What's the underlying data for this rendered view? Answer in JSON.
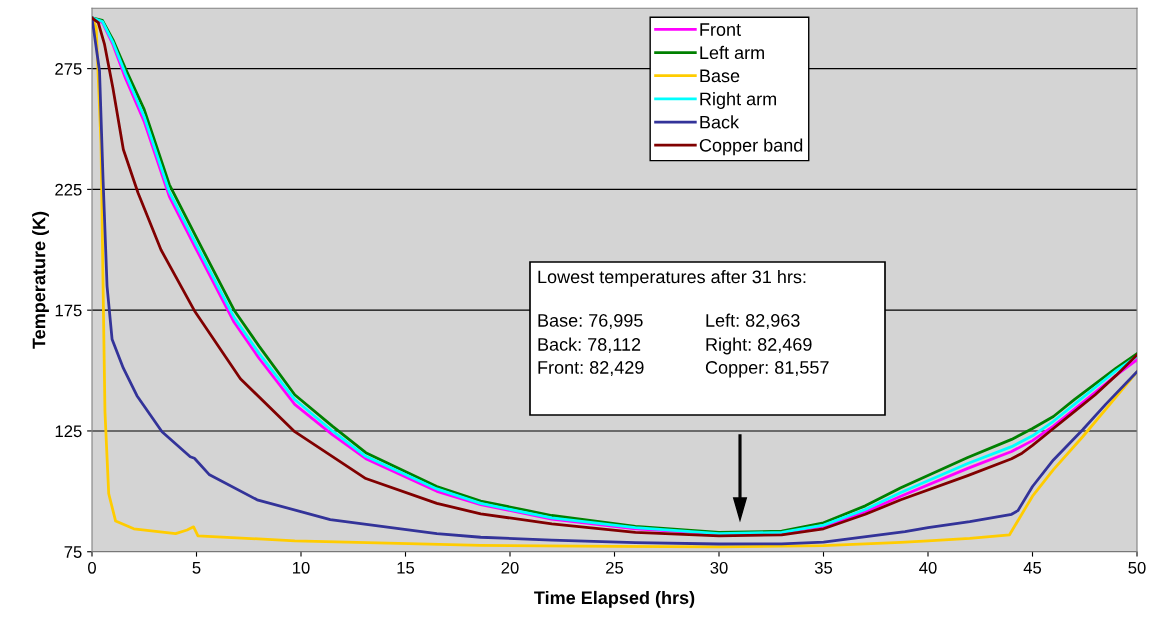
{
  "chart_data": {
    "type": "line",
    "xlabel": "Time Elapsed (hrs)",
    "ylabel": "Temperature (K)",
    "xlim": [
      0,
      50
    ],
    "xticks": [
      0,
      5,
      10,
      15,
      20,
      25,
      30,
      35,
      40,
      45,
      50
    ],
    "ylim": [
      75,
      300
    ],
    "yticks": [
      75,
      125,
      175,
      225,
      275
    ],
    "grid": "y",
    "legend": "top",
    "marker": "none",
    "line_style": "solid",
    "annotations": [
      "Lowest temperatures after 31 hrs:",
      "Base: 76,995",
      "Left: 82,963",
      "Back: 78,112",
      "Right: 82,469",
      "Front: 82,429",
      "Copper: 81,557"
    ],
    "series": [
      {
        "name": "Front",
        "color": "#ff00ff",
        "x": [
          0,
          0.5,
          1,
          1.6,
          2.5,
          3.7,
          5,
          6.8,
          8,
          9.7,
          11.5,
          13.1,
          16.5,
          18.6,
          22,
          26,
          30,
          33,
          35,
          37,
          38.7,
          41.9,
          44,
          45,
          46,
          47,
          48,
          49,
          50
        ],
        "values": [
          296,
          294,
          285,
          271,
          253,
          222,
          200,
          170,
          155,
          136,
          123.5,
          113.5,
          100,
          94.5,
          88.5,
          84.5,
          82.4,
          83,
          85.5,
          91.5,
          98,
          109.5,
          116.5,
          121,
          127,
          134,
          141,
          148,
          154.5
        ]
      },
      {
        "name": "Left arm",
        "color": "#008000",
        "x": [
          0,
          0.5,
          1,
          1.6,
          2.5,
          3.7,
          5,
          6.8,
          8,
          9.7,
          11.5,
          13.1,
          16.5,
          18.6,
          22,
          26,
          30,
          33,
          35,
          37,
          38.7,
          41.9,
          44,
          45,
          46,
          47,
          48,
          49,
          50
        ],
        "values": [
          296,
          295,
          287,
          275,
          258,
          227,
          205,
          175,
          160,
          140,
          127,
          116,
          102,
          96,
          90,
          85.5,
          83,
          83.5,
          87,
          94,
          101.5,
          114,
          121.5,
          126,
          131,
          138,
          144.5,
          151,
          157
        ]
      },
      {
        "name": "Base",
        "color": "#ffcc00",
        "x": [
          0,
          0.2,
          0.43,
          0.53,
          0.62,
          0.8,
          1.13,
          2,
          4,
          4.55,
          4.86,
          5.07,
          9.7,
          18.6,
          25,
          30,
          35,
          38.7,
          40,
          42,
          43.9,
          45,
          46,
          47.4,
          48.7,
          50
        ],
        "values": [
          296,
          292,
          244,
          185,
          133,
          99,
          87.7,
          84.5,
          82.5,
          84,
          85.3,
          81.6,
          79.5,
          77.6,
          77.2,
          77,
          77.5,
          78.9,
          79.5,
          80.5,
          82,
          98,
          109,
          122.6,
          136,
          149.5
        ]
      },
      {
        "name": "Right arm",
        "color": "#00ffff",
        "x": [
          0,
          0.5,
          1,
          1.6,
          2.5,
          3.7,
          5,
          6.8,
          8,
          9.7,
          11.5,
          13.1,
          16.5,
          18.6,
          22,
          26,
          30,
          33,
          35,
          37,
          38.7,
          41.9,
          44,
          45,
          46,
          47,
          48,
          49,
          50
        ],
        "values": [
          296,
          294.5,
          286,
          273,
          255,
          224,
          202,
          172,
          157,
          138,
          125,
          114.5,
          101,
          95,
          89,
          85,
          82.5,
          83,
          86,
          92.5,
          99.5,
          111.5,
          118.5,
          123,
          129,
          136,
          143,
          150,
          156
        ]
      },
      {
        "name": "Back",
        "color": "#333399",
        "x": [
          0,
          0.36,
          0.53,
          0.72,
          0.96,
          1.5,
          2.15,
          3.35,
          4.7,
          4.9,
          5.6,
          7.9,
          11.4,
          16.5,
          18.6,
          22,
          26,
          30,
          33,
          35,
          38.9,
          40,
          42,
          44,
          44.3,
          45,
          46,
          47.4,
          48.5,
          50
        ],
        "values": [
          296,
          274,
          229,
          185,
          163,
          151,
          139.6,
          124.7,
          114.3,
          113.7,
          107,
          96.5,
          88.3,
          82.5,
          81,
          79.8,
          78.8,
          78.2,
          78.3,
          79,
          83.3,
          85,
          87.5,
          90.5,
          92,
          102,
          113,
          125.5,
          136,
          149.5
        ]
      },
      {
        "name": "Copper band",
        "color": "#800000",
        "x": [
          0,
          0.3,
          0.6,
          1,
          1.5,
          2.2,
          3.3,
          4.9,
          7.1,
          9.7,
          13.1,
          16.5,
          18.6,
          22,
          26,
          30,
          33,
          35,
          37,
          38.7,
          41.9,
          44,
          44.5,
          45,
          46,
          47,
          48,
          49,
          50
        ],
        "values": [
          296,
          294,
          285,
          267,
          241.5,
          223.6,
          200,
          174.8,
          146.6,
          124.7,
          105.3,
          95,
          90.7,
          86.5,
          83,
          81.6,
          82,
          84.5,
          90.5,
          96.5,
          106.5,
          113.5,
          115.8,
          119,
          126,
          133,
          140,
          148,
          156.5
        ]
      }
    ]
  }
}
